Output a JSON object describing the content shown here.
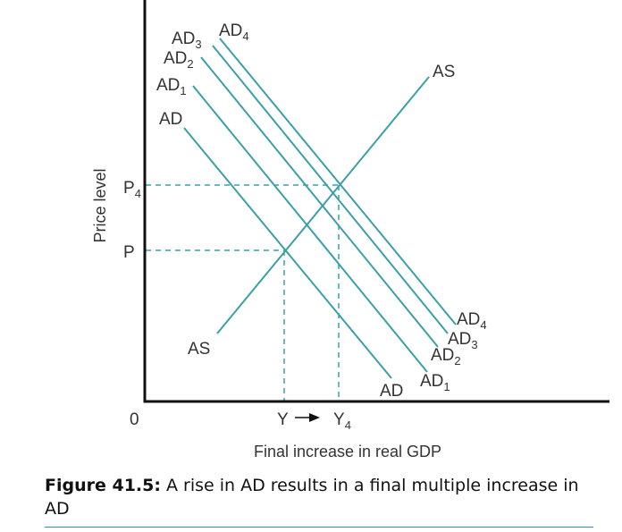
{
  "diagram": {
    "y_axis_label": "Price level",
    "x_axis_label": "Final increase in real GDP",
    "origin_label": "0",
    "price_labels": {
      "p4": "P",
      "p4_sub": "4",
      "p": "P"
    },
    "output_labels": {
      "y": "Y",
      "y4": "Y",
      "y4_sub": "4"
    },
    "curves": {
      "ad": {
        "base": "AD",
        "sub": ""
      },
      "ad1": {
        "base": "AD",
        "sub": "1"
      },
      "ad2": {
        "base": "AD",
        "sub": "2"
      },
      "ad3": {
        "base": "AD",
        "sub": "3"
      },
      "ad4": {
        "base": "AD",
        "sub": "4"
      },
      "as": "AS"
    },
    "line_color": "#3aa0a8",
    "axis_color": "#111111"
  },
  "caption": {
    "figure_label": "Figure 41.5:",
    "text": " A rise in AD results in a final multiple increase in AD"
  }
}
